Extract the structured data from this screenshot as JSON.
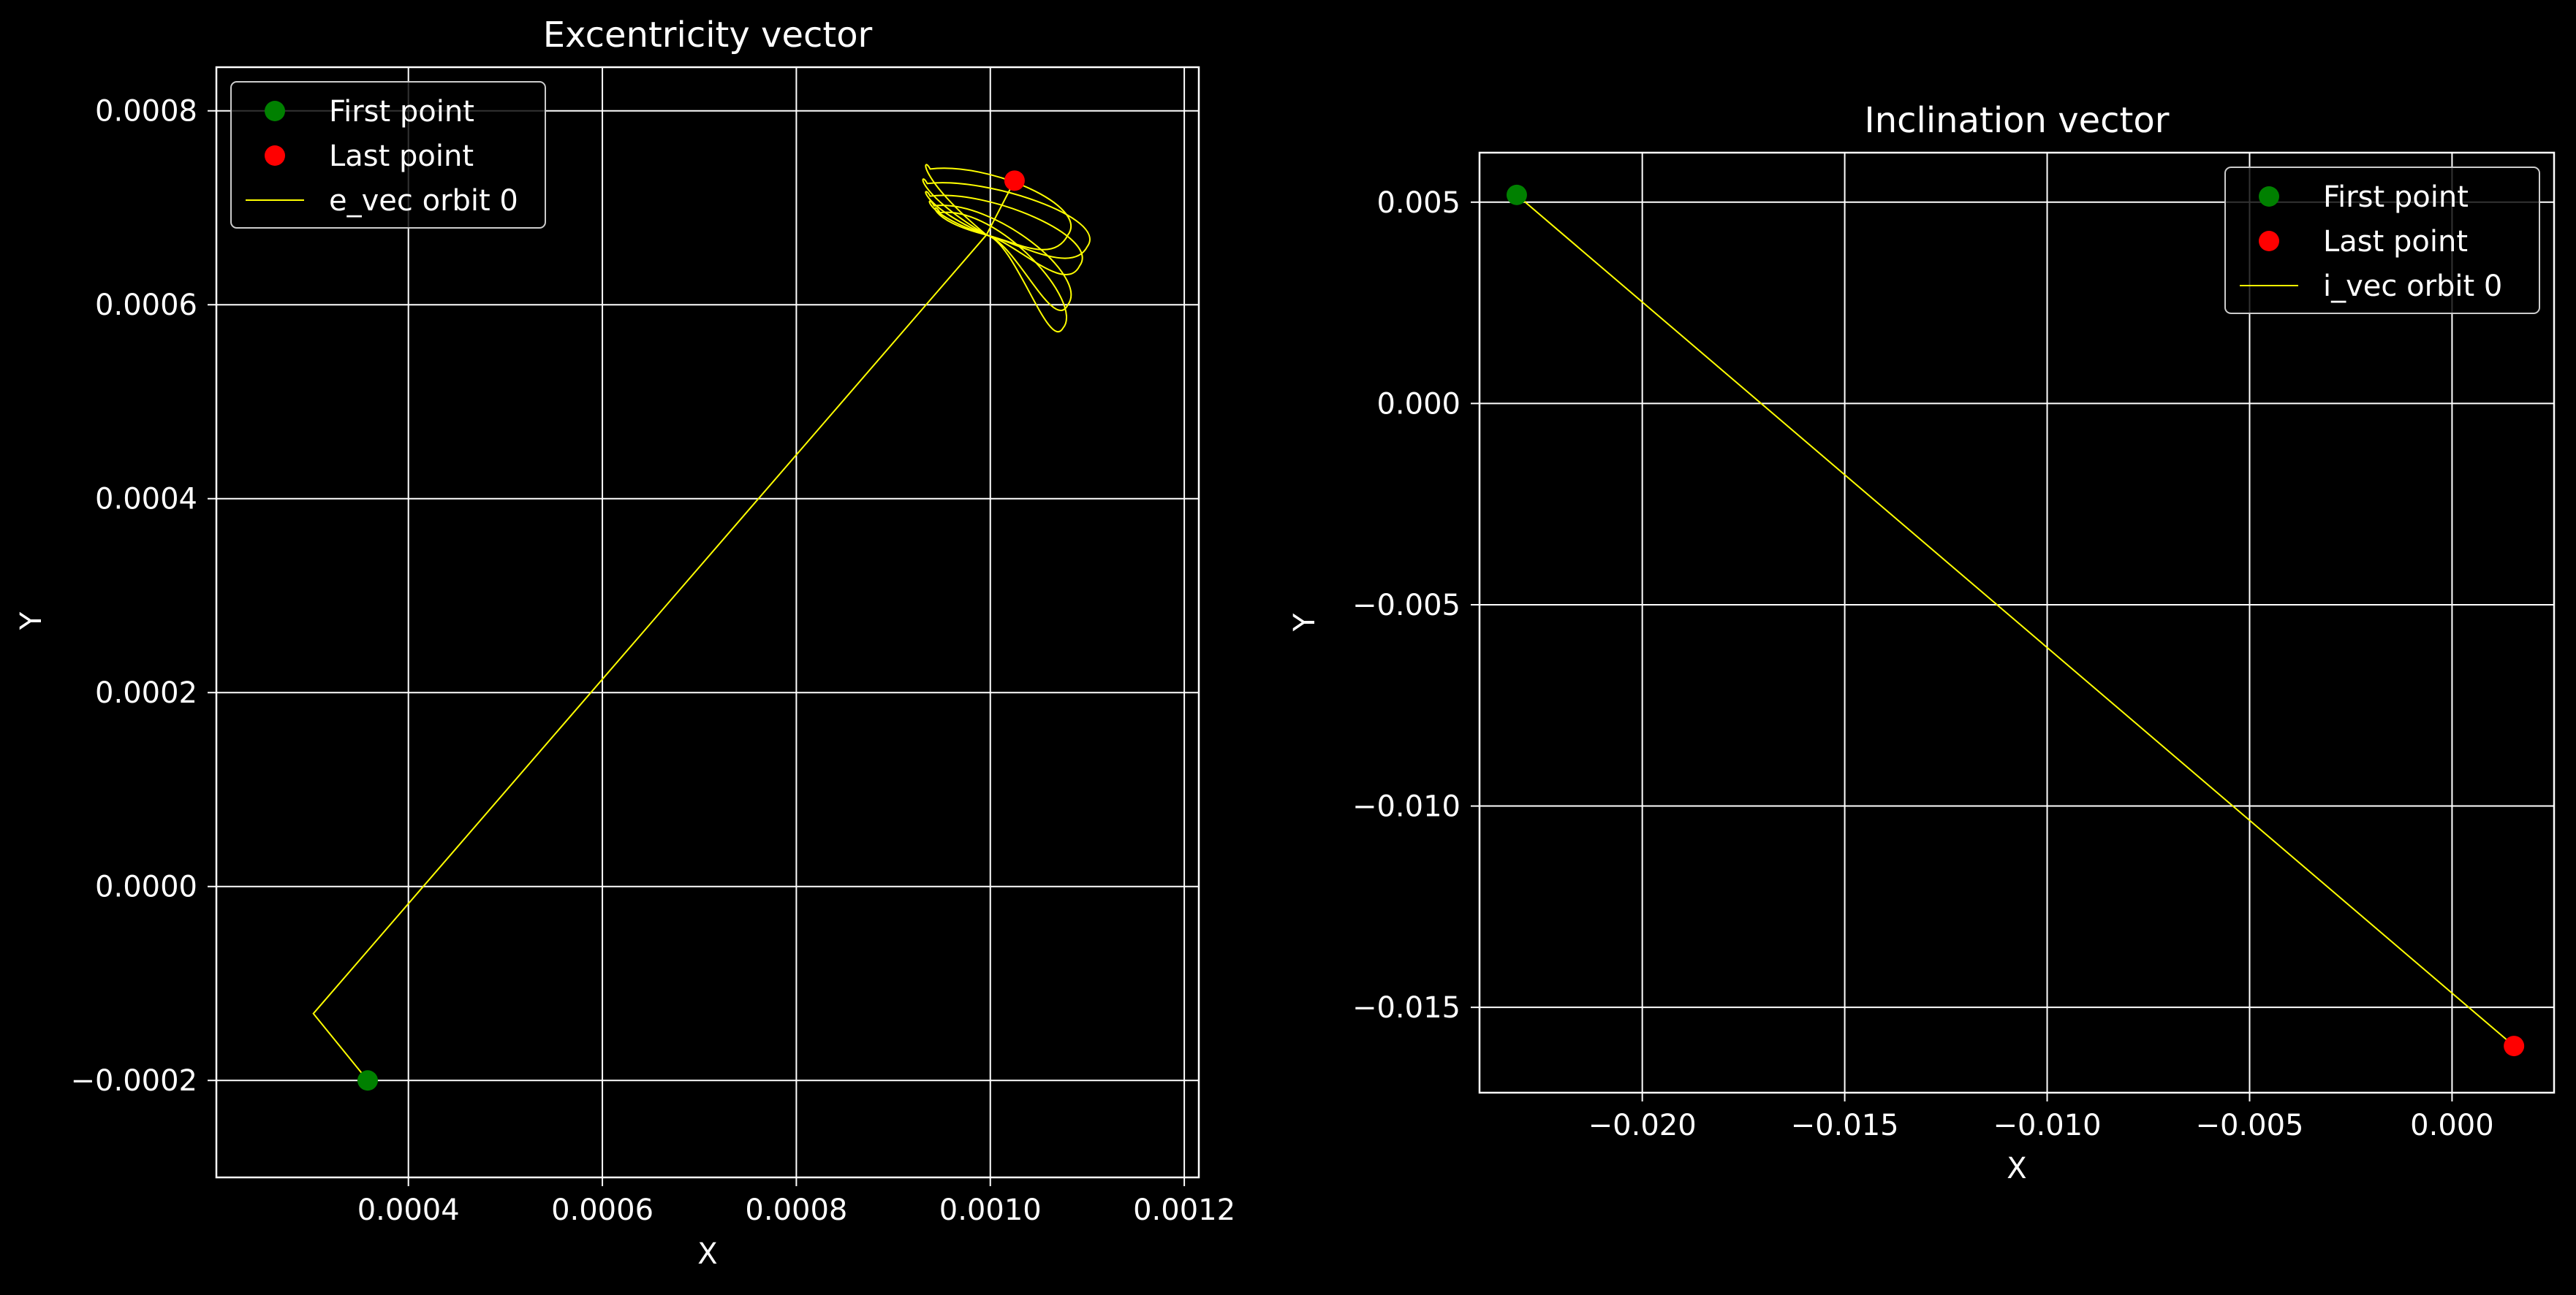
{
  "figure": {
    "background": "#000000",
    "foreground": "#ffffff"
  },
  "chart_data": [
    {
      "type": "scatter",
      "title": "Excentricity vector",
      "xlabel": "X",
      "ylabel": "Y",
      "xlim": [
        0.000202,
        0.001215
      ],
      "ylim": [
        -0.0003,
        0.000845
      ],
      "xticks": [
        0.0004,
        0.0006,
        0.0008,
        0.001,
        0.0012
      ],
      "xtick_labels": [
        "0.0004",
        "0.0006",
        "0.0008",
        "0.0010",
        "0.0012"
      ],
      "yticks": [
        -0.0002,
        0.0,
        0.0002,
        0.0004,
        0.0006,
        0.0008
      ],
      "ytick_labels": [
        "−0.0002",
        "0.0000",
        "0.0002",
        "0.0004",
        "0.0006",
        "0.0008"
      ],
      "grid": true,
      "legend_position": "upper left",
      "legend": [
        {
          "label": "First point",
          "kind": "marker",
          "color": "#008000"
        },
        {
          "label": "Last point",
          "kind": "marker",
          "color": "#ff0000"
        },
        {
          "label": "e_vec orbit 0",
          "kind": "line",
          "color": "#ffff00"
        }
      ],
      "first_point": {
        "x": 0.000358,
        "y": -0.0002
      },
      "last_point": {
        "x": 0.001025,
        "y": 0.000728
      },
      "series": [
        {
          "name": "e_vec orbit 0",
          "color": "#ffff00",
          "segments": [
            [
              [
                0.000358,
                -0.0002
              ],
              [
                0.000302,
                -0.000131
              ],
              [
                0.000996,
                0.000672
              ]
            ]
          ],
          "loops": {
            "anchor": [
              0.000996,
              0.000672
            ],
            "petals": [
              {
                "x": 0.000938,
                "y": 0.00074,
                "tip": [
                  0.00108,
                  0.000672
                ],
                "width": 3e-05
              },
              {
                "x": 0.000935,
                "y": 0.000725,
                "tip": [
                  0.0011,
                  0.00066
                ],
                "width": 3e-05
              },
              {
                "x": 0.000938,
                "y": 0.000712,
                "tip": [
                  0.001092,
                  0.00064
                ],
                "width": 3e-05
              },
              {
                "x": 0.000942,
                "y": 0.000702,
                "tip": [
                  0.00108,
                  0.0006
                ],
                "width": 3e-05
              },
              {
                "x": 0.000948,
                "y": 0.000695,
                "tip": [
                  0.001075,
                  0.000576
                ],
                "width": 2.6e-05
              }
            ],
            "end": [
              0.001025,
              0.000728
            ]
          }
        }
      ]
    },
    {
      "type": "scatter",
      "title": "Inclination vector",
      "xlabel": "X",
      "ylabel": "Y",
      "xlim": [
        -0.02402,
        0.00252
      ],
      "ylim": [
        -0.01712,
        0.00623
      ],
      "xticks": [
        -0.02,
        -0.015,
        -0.01,
        -0.005,
        0.0
      ],
      "xtick_labels": [
        "−0.020",
        "−0.015",
        "−0.010",
        "−0.005",
        "0.000"
      ],
      "yticks": [
        -0.015,
        -0.01,
        -0.005,
        0.0,
        0.005
      ],
      "ytick_labels": [
        "−0.015",
        "−0.010",
        "−0.005",
        "0.000",
        "0.005"
      ],
      "grid": true,
      "legend_position": "upper right",
      "legend": [
        {
          "label": "First point",
          "kind": "marker",
          "color": "#008000"
        },
        {
          "label": "Last point",
          "kind": "marker",
          "color": "#ff0000"
        },
        {
          "label": "i_vec orbit 0",
          "kind": "line",
          "color": "#ffff00"
        }
      ],
      "first_point": {
        "x": -0.0231,
        "y": 0.00518
      },
      "last_point": {
        "x": 0.00153,
        "y": -0.01596
      },
      "series": [
        {
          "name": "i_vec orbit 0",
          "color": "#ffff00",
          "segments": [
            [
              [
                -0.0231,
                0.00518
              ],
              [
                0.00153,
                -0.01596
              ]
            ]
          ]
        }
      ]
    }
  ]
}
